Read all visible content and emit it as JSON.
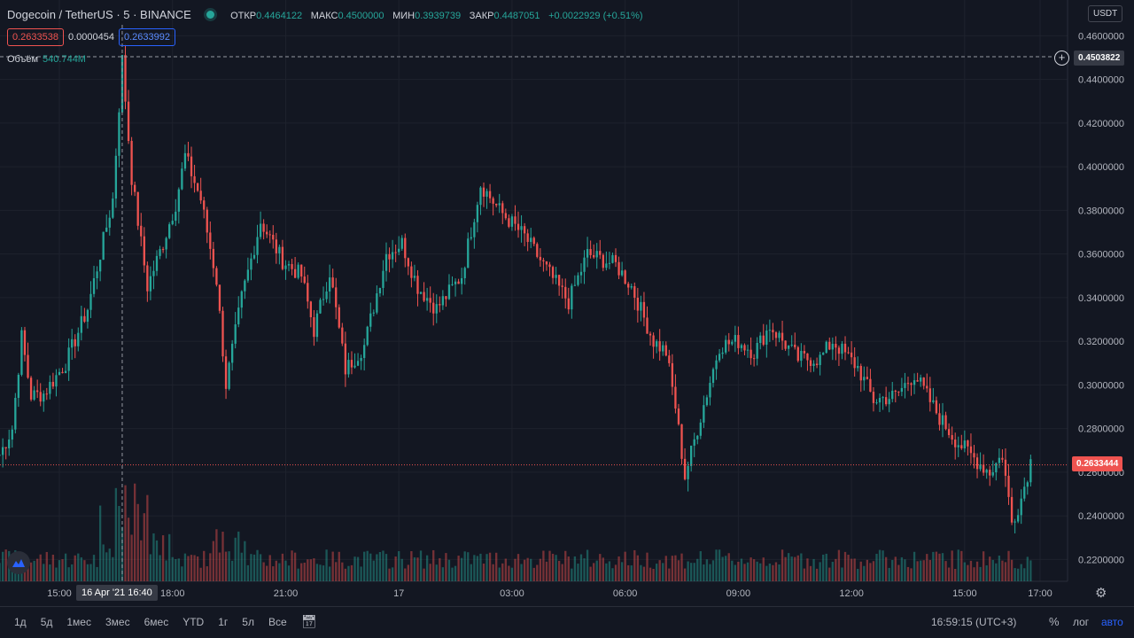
{
  "header": {
    "title": "Dogecoin / TetherUS · 5 · BINANCE",
    "ohlc": [
      {
        "label": "ОТКР",
        "value": "0.4464122"
      },
      {
        "label": "МАКС",
        "value": "0.4500000"
      },
      {
        "label": "МИН",
        "value": "0.3939739"
      },
      {
        "label": "ЗАКР",
        "value": "0.4487051"
      }
    ],
    "change": "+0.0022929 (+0.51%)",
    "bid": "0.2633538",
    "spread": "0.0000454",
    "ask": "0.2633992",
    "volume_label": "Объём",
    "volume_value": "540.744M"
  },
  "currency": "USDT",
  "crosshair_price": "0.4503822",
  "crosshair_time": "16 Apr '21   16:40",
  "last_price": "0.2633444",
  "bottom": {
    "ranges": [
      "1д",
      "5д",
      "1мес",
      "3мес",
      "6мес",
      "YTD",
      "1г",
      "5л",
      "Все"
    ],
    "clock": "16:59:15 (UTC+3)",
    "percent": "%",
    "log": "лог",
    "auto": "авто"
  },
  "colors": {
    "up": "#26a69a",
    "down": "#ef5350",
    "background": "#131722",
    "grid": "#1e222d"
  },
  "chart_data": {
    "type": "candlestick",
    "symbol": "DOGEUSDT",
    "interval": "5",
    "y_range": [
      0.21,
      0.465
    ],
    "y_ticks": [
      "0.4600000",
      "0.4400000",
      "0.4200000",
      "0.4000000",
      "0.3800000",
      "0.3600000",
      "0.3400000",
      "0.3200000",
      "0.3000000",
      "0.2800000",
      "0.2600000",
      "0.2400000",
      "0.2200000"
    ],
    "x_ticks": [
      "15:00",
      "18:00",
      "21:00",
      "17",
      "03:00",
      "06:00",
      "09:00",
      "12:00",
      "15:00",
      "17:00"
    ],
    "anchors": [
      [
        "16 13:25",
        0.268
      ],
      [
        "16 13:45",
        0.28
      ],
      [
        "16 14:00",
        0.322
      ],
      [
        "16 14:15",
        0.295
      ],
      [
        "16 14:35",
        0.296
      ],
      [
        "16 15:10",
        0.31
      ],
      [
        "16 15:45",
        0.335
      ],
      [
        "16 16:05",
        0.36
      ],
      [
        "16 16:25",
        0.385
      ],
      [
        "16 16:40",
        0.449
      ],
      [
        "16 16:55",
        0.395
      ],
      [
        "16 17:20",
        0.345
      ],
      [
        "16 17:45",
        0.365
      ],
      [
        "16 18:05",
        0.383
      ],
      [
        "16 18:20",
        0.405
      ],
      [
        "16 18:45",
        0.385
      ],
      [
        "16 19:10",
        0.348
      ],
      [
        "16 19:25",
        0.3
      ],
      [
        "16 19:50",
        0.34
      ],
      [
        "16 20:20",
        0.375
      ],
      [
        "16 20:55",
        0.357
      ],
      [
        "16 21:25",
        0.35
      ],
      [
        "16 21:45",
        0.325
      ],
      [
        "16 22:10",
        0.352
      ],
      [
        "16 22:35",
        0.307
      ],
      [
        "16 23:05",
        0.318
      ],
      [
        "16 23:40",
        0.36
      ],
      [
        "17 00:05",
        0.365
      ],
      [
        "17 00:30",
        0.345
      ],
      [
        "17 01:00",
        0.335
      ],
      [
        "17 01:40",
        0.35
      ],
      [
        "17 02:10",
        0.392
      ],
      [
        "17 02:40",
        0.38
      ],
      [
        "17 03:20",
        0.368
      ],
      [
        "17 03:50",
        0.355
      ],
      [
        "17 04:30",
        0.338
      ],
      [
        "17 05:00",
        0.36
      ],
      [
        "17 05:45",
        0.355
      ],
      [
        "17 06:10",
        0.345
      ],
      [
        "17 06:45",
        0.32
      ],
      [
        "17 07:05",
        0.315
      ],
      [
        "17 07:20",
        0.29
      ],
      [
        "17 07:35",
        0.258
      ],
      [
        "17 07:55",
        0.28
      ],
      [
        "17 08:30",
        0.318
      ],
      [
        "17 09:00",
        0.32
      ],
      [
        "17 09:25",
        0.315
      ],
      [
        "17 09:50",
        0.327
      ],
      [
        "17 10:35",
        0.312
      ],
      [
        "17 11:10",
        0.312
      ],
      [
        "17 11:30",
        0.32
      ],
      [
        "17 12:10",
        0.308
      ],
      [
        "17 12:35",
        0.293
      ],
      [
        "17 13:10",
        0.295
      ],
      [
        "17 13:40",
        0.305
      ],
      [
        "17 14:20",
        0.285
      ],
      [
        "17 14:45",
        0.275
      ],
      [
        "17 15:20",
        0.265
      ],
      [
        "17 15:40",
        0.26
      ],
      [
        "17 16:00",
        0.268
      ],
      [
        "17 16:15",
        0.237
      ],
      [
        "17 16:30",
        0.248
      ],
      [
        "17 16:45",
        0.265
      ]
    ],
    "volume": {
      "unit": "M",
      "last": 540.744
    }
  }
}
